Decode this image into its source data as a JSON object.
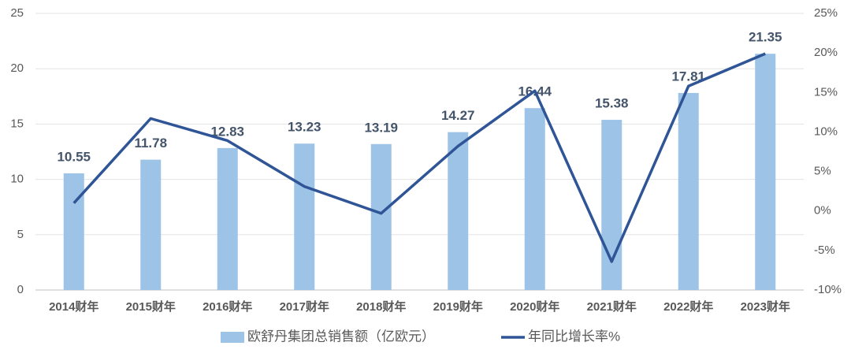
{
  "chart_data": {
    "type": "bar_line",
    "categories": [
      "2014财年",
      "2015财年",
      "2016财年",
      "2017财年",
      "2018财年",
      "2019财年",
      "2020财年",
      "2021财年",
      "2022财年",
      "2023财年"
    ],
    "series": [
      {
        "name": "欧舒丹集团总销售额（亿欧元）",
        "type": "bar",
        "color": "#9dc3e6",
        "values": [
          10.55,
          11.78,
          12.83,
          13.23,
          13.19,
          14.27,
          16.44,
          15.38,
          17.81,
          21.35
        ]
      },
      {
        "name": "年同比增长率%",
        "type": "line",
        "axis": "y2",
        "color": "#2f5597",
        "values": [
          1.0,
          11.7,
          8.9,
          3.1,
          -0.3,
          8.2,
          15.2,
          -6.4,
          15.8,
          19.9
        ]
      }
    ],
    "ylim": [
      0,
      25
    ],
    "yticks": [
      0,
      5,
      10,
      15,
      20,
      25
    ],
    "y2lim": [
      -10,
      25
    ],
    "y2ticks": [
      {
        "value": -10,
        "label": "-10%"
      },
      {
        "value": -5,
        "label": "-5%"
      },
      {
        "value": 0,
        "label": "0%"
      },
      {
        "value": 5,
        "label": "5%"
      },
      {
        "value": 10,
        "label": "10%"
      },
      {
        "value": 15,
        "label": "15%"
      },
      {
        "value": 20,
        "label": "20%"
      },
      {
        "value": 25,
        "label": "25%"
      }
    ],
    "grid": true
  }
}
